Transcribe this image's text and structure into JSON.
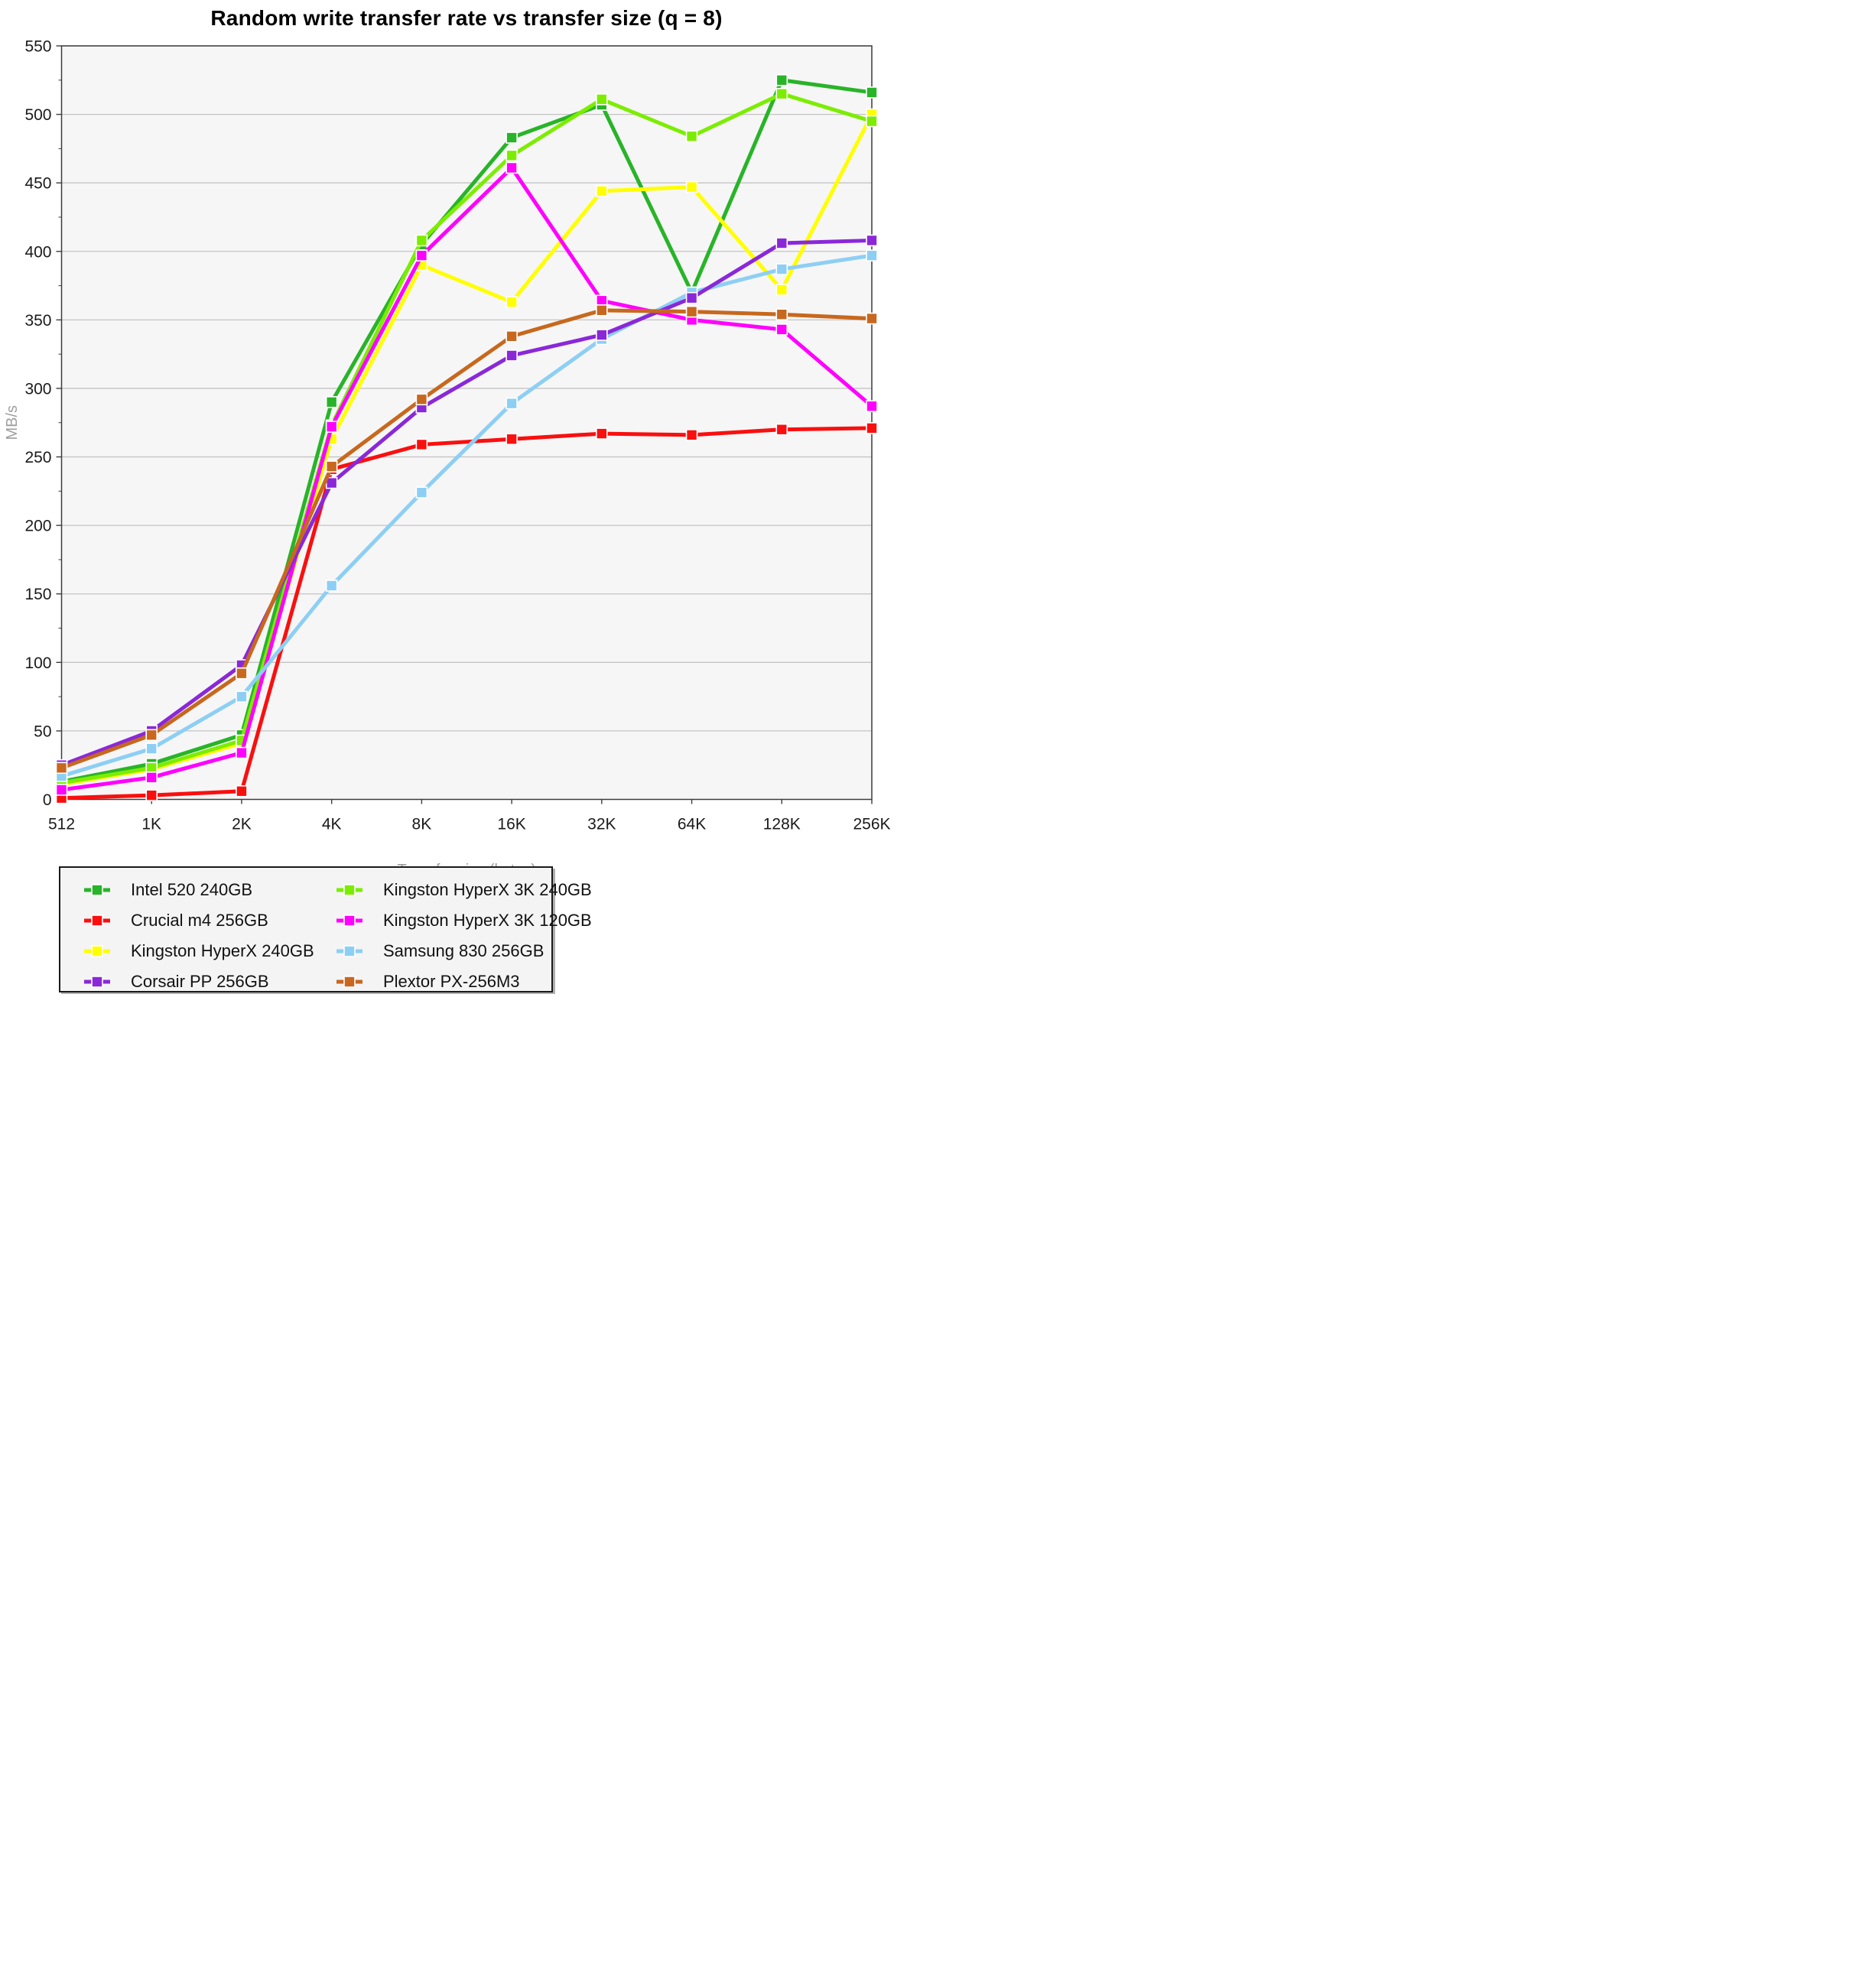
{
  "title": "Random write transfer rate vs transfer size (q = 8)",
  "y_axis": {
    "label": "MB/s",
    "min": 0,
    "max": 550,
    "major_tick_step": 50,
    "minor_tick_step": 25
  },
  "x_axis": {
    "label": "Transfer size (bytes)",
    "categories": [
      "512",
      "1K",
      "2K",
      "4K",
      "8K",
      "16K",
      "32K",
      "64K",
      "128K",
      "256K"
    ]
  },
  "legend": {
    "position": "bottom-left",
    "columns": 2
  },
  "colors": {
    "page_background": "#ffffff",
    "plot_background": "#f6f6f6",
    "gridline": "#c4c4c4",
    "axis": "#3c3c3c",
    "axis_title_text": "#9e9e9e",
    "tick_text": "#1a1a1a",
    "marker_border": "#ffffff",
    "legend_background": "#f4f4f4",
    "legend_border": "#1a1a1a"
  },
  "chart_data": {
    "type": "line",
    "title": "Random write transfer rate vs transfer size (q = 8)",
    "xlabel": "Transfer size (bytes)",
    "ylabel": "MB/s",
    "ylim": [
      0,
      550
    ],
    "ytick_step": 50,
    "grid": "horizontal-major",
    "legend_position": "bottom",
    "marker": "square",
    "categories": [
      "512",
      "1K",
      "2K",
      "4K",
      "8K",
      "16K",
      "32K",
      "64K",
      "128K",
      "256K"
    ],
    "series": [
      {
        "name": "Intel 520 240GB",
        "color": "#28b428",
        "values": [
          13,
          26,
          47,
          290,
          405,
          483,
          507,
          370,
          525,
          516
        ]
      },
      {
        "name": "Crucial m4 256GB",
        "color": "#fa0f0f",
        "values": [
          1,
          3,
          6,
          241,
          259,
          263,
          267,
          266,
          270,
          271
        ]
      },
      {
        "name": "Kingston HyperX 240GB",
        "color": "#ffff00",
        "values": [
          11,
          22,
          41,
          263,
          390,
          363,
          444,
          447,
          372,
          500
        ]
      },
      {
        "name": "Corsair PP 256GB",
        "color": "#8a28d8",
        "values": [
          25,
          50,
          98,
          231,
          286,
          324,
          339,
          366,
          406,
          408
        ]
      },
      {
        "name": "Kingston HyperX 3K 240GB",
        "color": "#7ced00",
        "values": [
          12,
          23,
          43,
          273,
          408,
          470,
          511,
          484,
          515,
          495
        ]
      },
      {
        "name": "Kingston HyperX 3K 120GB",
        "color": "#ff00ff",
        "values": [
          7,
          16,
          34,
          272,
          397,
          461,
          364,
          350,
          343,
          287
        ]
      },
      {
        "name": "Samsung 830 256GB",
        "color": "#8dcff4",
        "values": [
          17,
          37,
          75,
          156,
          224,
          289,
          336,
          370,
          387,
          397
        ]
      },
      {
        "name": "Plextor PX-256M3",
        "color": "#c7681e",
        "values": [
          23,
          47,
          92,
          243,
          292,
          338,
          357,
          356,
          354,
          351
        ]
      }
    ],
    "draw_order": [
      0,
      1,
      2,
      4,
      5,
      6,
      3,
      7
    ]
  }
}
